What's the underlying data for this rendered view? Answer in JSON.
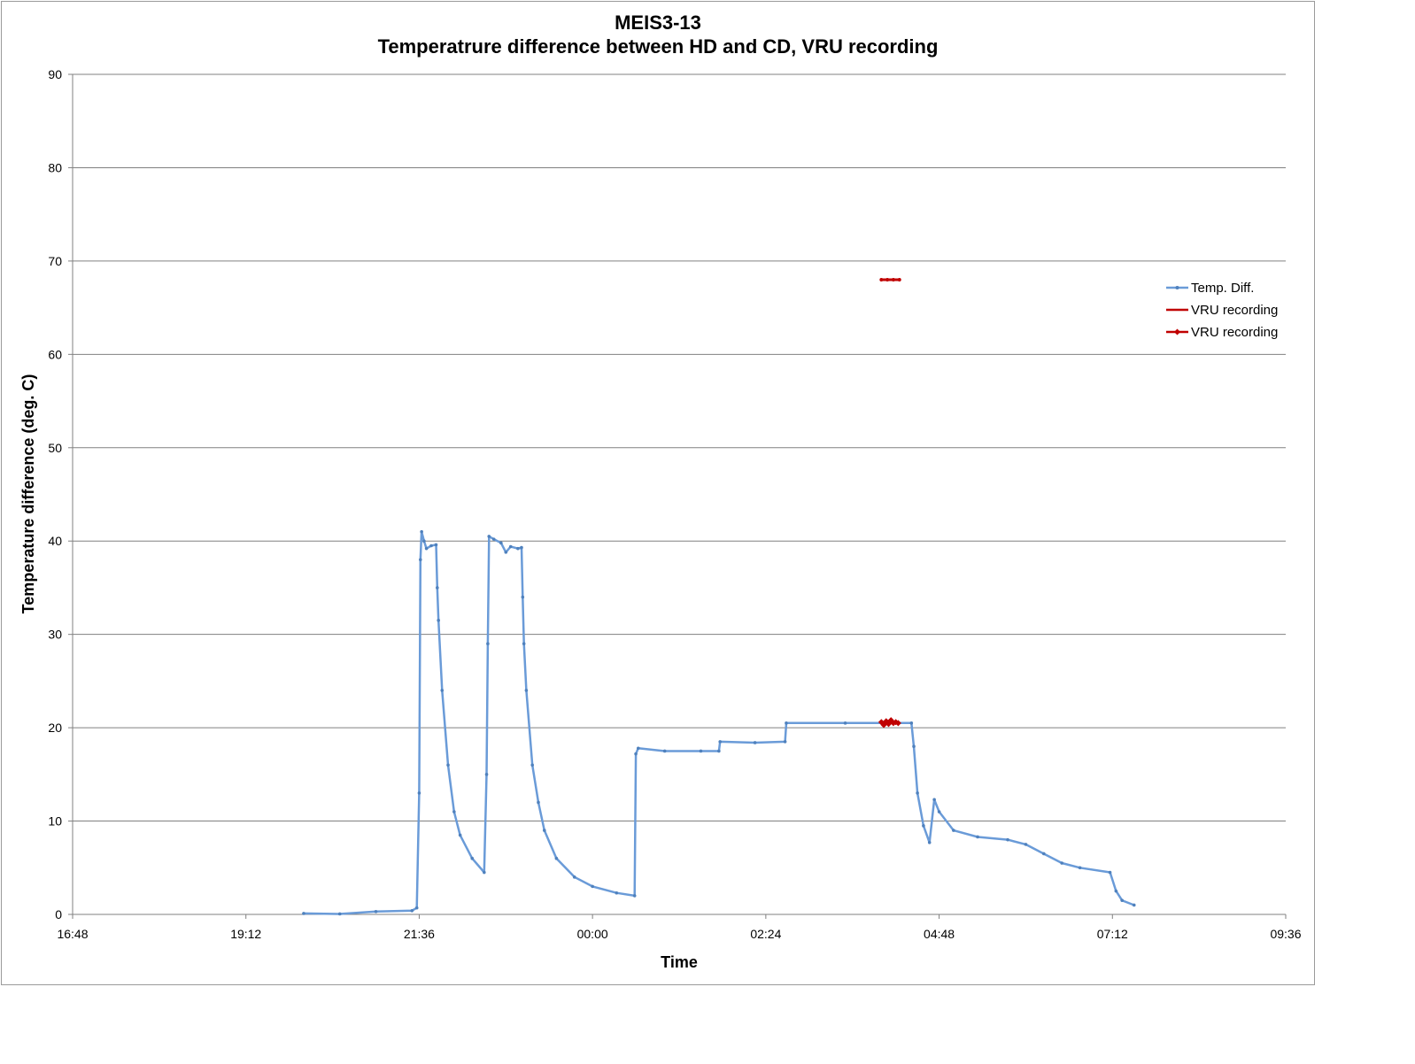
{
  "chart_data": {
    "type": "line",
    "title": "MEIS3-13",
    "subtitle": "Temperatrure difference between HD and CD, VRU recording",
    "xlabel": "Time",
    "ylabel": "Temperature difference (deg. C)",
    "xlim": [
      "16:48",
      "09:36"
    ],
    "x_ticks": [
      "16:48",
      "19:12",
      "21:36",
      "00:00",
      "02:24",
      "04:48",
      "07:12",
      "09:36"
    ],
    "ylim": [
      0,
      90
    ],
    "y_ticks": [
      0,
      10,
      20,
      30,
      40,
      50,
      60,
      70,
      80,
      90
    ],
    "grid": "horizontal",
    "legend_position": "right",
    "series": [
      {
        "name": "Temp. Diff.",
        "color": "#6a9bd8",
        "marker": "dot",
        "points": [
          [
            "20:00",
            0.1
          ],
          [
            "20:30",
            0.05
          ],
          [
            "21:00",
            0.3
          ],
          [
            "21:30",
            0.4
          ],
          [
            "21:34",
            0.7
          ],
          [
            "21:36",
            13.0
          ],
          [
            "21:37",
            38.0
          ],
          [
            "21:38",
            41.0
          ],
          [
            "21:40",
            40.0
          ],
          [
            "21:42",
            39.2
          ],
          [
            "21:46",
            39.5
          ],
          [
            "21:50",
            39.6
          ],
          [
            "21:51",
            35.0
          ],
          [
            "21:52",
            31.5
          ],
          [
            "21:55",
            24.0
          ],
          [
            "22:00",
            16.0
          ],
          [
            "22:05",
            11.0
          ],
          [
            "22:10",
            8.5
          ],
          [
            "22:20",
            6.0
          ],
          [
            "22:30",
            4.5
          ],
          [
            "22:32",
            15.0
          ],
          [
            "22:33",
            29.0
          ],
          [
            "22:34",
            40.5
          ],
          [
            "22:38",
            40.2
          ],
          [
            "22:44",
            39.8
          ],
          [
            "22:48",
            38.8
          ],
          [
            "22:52",
            39.4
          ],
          [
            "22:58",
            39.2
          ],
          [
            "23:01",
            39.3
          ],
          [
            "23:02",
            34.0
          ],
          [
            "23:03",
            29.0
          ],
          [
            "23:05",
            24.0
          ],
          [
            "23:10",
            16.0
          ],
          [
            "23:15",
            12.0
          ],
          [
            "23:20",
            9.0
          ],
          [
            "23:30",
            6.0
          ],
          [
            "23:45",
            4.0
          ],
          [
            "00:00",
            3.0
          ],
          [
            "00:20",
            2.3
          ],
          [
            "00:35",
            2.0
          ],
          [
            "00:36",
            17.2
          ],
          [
            "00:38",
            17.8
          ],
          [
            "01:00",
            17.5
          ],
          [
            "01:30",
            17.5
          ],
          [
            "01:45",
            17.5
          ],
          [
            "01:46",
            18.5
          ],
          [
            "02:15",
            18.4
          ],
          [
            "02:40",
            18.5
          ],
          [
            "02:41",
            20.5
          ],
          [
            "03:30",
            20.5
          ],
          [
            "04:00",
            20.5
          ],
          [
            "04:25",
            20.5
          ],
          [
            "04:27",
            18.0
          ],
          [
            "04:30",
            13.0
          ],
          [
            "04:35",
            9.5
          ],
          [
            "04:40",
            7.7
          ],
          [
            "04:44",
            12.3
          ],
          [
            "04:48",
            11.0
          ],
          [
            "05:00",
            9.0
          ],
          [
            "05:20",
            8.3
          ],
          [
            "05:45",
            8.0
          ],
          [
            "06:00",
            7.5
          ],
          [
            "06:15",
            6.5
          ],
          [
            "06:30",
            5.5
          ],
          [
            "06:45",
            5.0
          ],
          [
            "07:10",
            4.5
          ],
          [
            "07:15",
            2.5
          ],
          [
            "07:20",
            1.5
          ],
          [
            "07:30",
            1.0
          ]
        ]
      },
      {
        "name": "VRU recording",
        "color": "#c00000",
        "marker": "none",
        "points": [
          [
            "04:00",
            68.0
          ],
          [
            "04:05",
            68.0
          ],
          [
            "04:10",
            68.0
          ],
          [
            "04:15",
            68.0
          ]
        ]
      },
      {
        "name": "VRU recording",
        "color": "#c00000",
        "marker": "diamond",
        "points": [
          [
            "04:00",
            20.6
          ],
          [
            "04:02",
            20.3
          ],
          [
            "04:04",
            20.7
          ],
          [
            "04:06",
            20.4
          ],
          [
            "04:08",
            20.8
          ],
          [
            "04:10",
            20.5
          ],
          [
            "04:12",
            20.6
          ],
          [
            "04:14",
            20.5
          ]
        ]
      }
    ]
  }
}
